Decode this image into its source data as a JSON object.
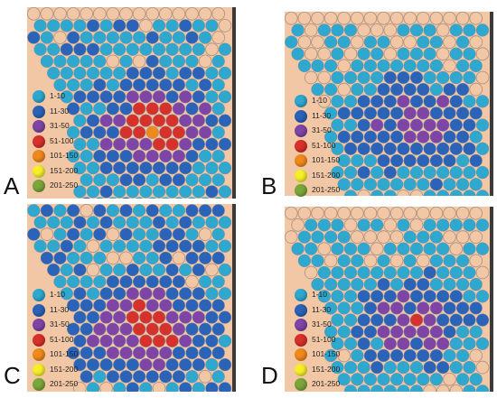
{
  "legend": {
    "items": [
      {
        "label": "1-10",
        "color": "#2ea8cf"
      },
      {
        "label": "11-30",
        "color": "#2a63b8"
      },
      {
        "label": "31-50",
        "color": "#7f45a6"
      },
      {
        "label": "51-100",
        "color": "#d7312b"
      },
      {
        "label": "101-150",
        "color": "#f0891c"
      },
      {
        "label": "151-200",
        "color": "#f6ee2a"
      },
      {
        "label": "201-250",
        "color": "#7aa63a"
      }
    ]
  },
  "colors": {
    "background": "#f2c7a5",
    "circle_outline": "#a98f80",
    "frame_bar": "#3a3a3a"
  },
  "panels": [
    {
      "letter": "A",
      "colors": "#2ea8cf,#2a63b8,#7f45a6,#d7312b,#f0891c,#7aa63a"
    },
    {
      "letter": "B",
      "colors": "#2ea8cf,#2a63b8,#7f45a6,#d7312b"
    },
    {
      "letter": "C",
      "colors": "#2ea8cf,#2a63b8,#7f45a6,#d7312b,#f0891c"
    },
    {
      "letter": "D",
      "colors": "#2ea8cf,#2a63b8,#7f45a6,#d7312b"
    }
  ]
}
